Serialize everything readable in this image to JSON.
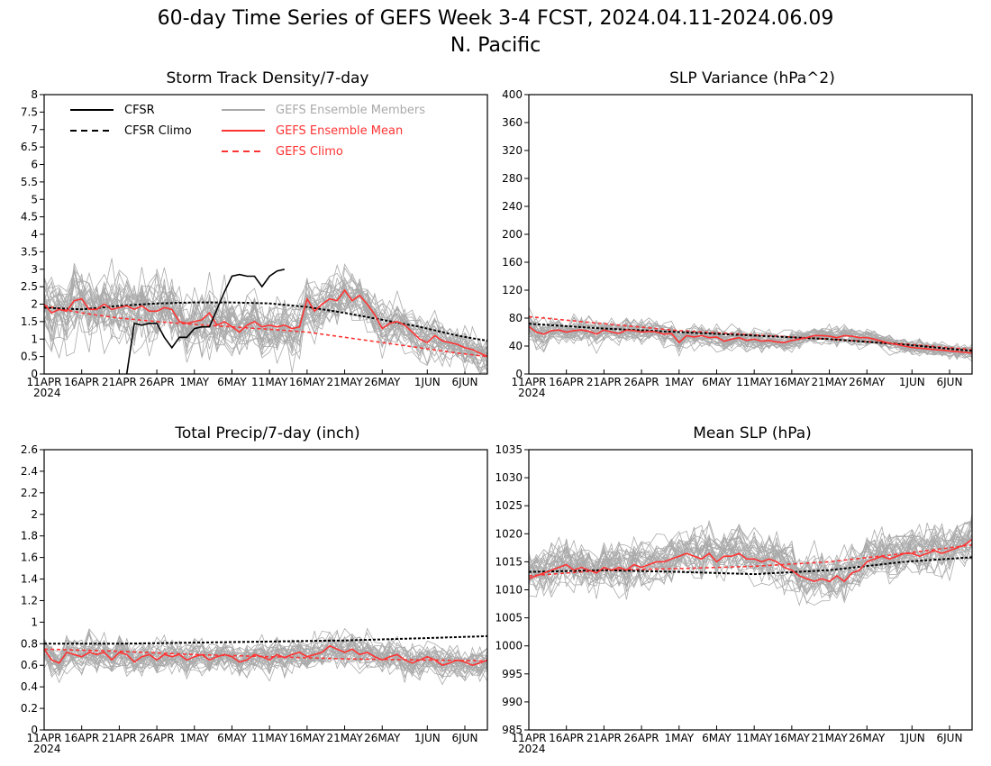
{
  "figure": {
    "title": "60-day Time Series of GEFS Week 3-4 FCST, 2024.04.11-2024.06.09",
    "subtitle": "N. Pacific"
  },
  "colors": {
    "cfsr": "#000000",
    "cfsr_climo": "#000000",
    "members": "#aaaaaa",
    "ens_mean": "#ff3333",
    "gefs_climo": "#ff3333"
  },
  "legend": {
    "cfsr": "CFSR",
    "cfsr_climo": "CFSR Climo",
    "members": "GEFS Ensemble Members",
    "ens_mean": "GEFS Ensemble Mean",
    "gefs_climo": "GEFS Climo"
  },
  "x_axis": {
    "ticks": [
      "11APR",
      "16APR",
      "21APR",
      "26APR",
      "1MAY",
      "6MAY",
      "11MAY",
      "16MAY",
      "21MAY",
      "26MAY",
      "1JUN",
      "6JUN"
    ],
    "tick_days": [
      0,
      5,
      10,
      15,
      20,
      25,
      30,
      35,
      40,
      45,
      51,
      56
    ],
    "year_label": "2024",
    "range_days": [
      0,
      59
    ]
  },
  "chart_data": [
    {
      "type": "line",
      "title": "Storm Track Density/7-day",
      "ylim": [
        0,
        8
      ],
      "yticks": [
        "0",
        "0.5",
        "1",
        "1.5",
        "2",
        "2.5",
        "3",
        "3.5",
        "4",
        "4.5",
        "5",
        "5.5",
        "6",
        "6.5",
        "7",
        "7.5",
        "8"
      ],
      "legend_position": "top-left",
      "member_count": 30,
      "series": [
        {
          "name": "CFSR",
          "x": [
            11,
            12,
            13,
            14,
            15,
            16,
            17,
            18,
            19,
            20,
            21,
            22,
            23,
            24,
            25,
            26,
            27,
            28,
            29,
            30,
            31,
            32
          ],
          "y": [
            0.0,
            1.45,
            1.4,
            1.45,
            1.45,
            1.05,
            0.75,
            1.05,
            1.05,
            1.3,
            1.35,
            1.35,
            1.85,
            2.35,
            2.8,
            2.85,
            2.8,
            2.8,
            2.5,
            2.8,
            2.95,
            3.0
          ]
        },
        {
          "name": "CFSR Climo",
          "x": [
            0,
            5,
            10,
            15,
            20,
            25,
            30,
            35,
            40,
            45,
            50,
            55,
            59
          ],
          "y": [
            1.9,
            1.85,
            1.95,
            2.02,
            2.05,
            2.05,
            2.02,
            1.92,
            1.75,
            1.55,
            1.35,
            1.1,
            0.95
          ]
        },
        {
          "name": "GEFS Ensemble Mean",
          "x": [
            0,
            1,
            2,
            3,
            4,
            5,
            6,
            7,
            8,
            9,
            10,
            11,
            12,
            13,
            14,
            15,
            16,
            17,
            18,
            19,
            20,
            21,
            22,
            23,
            24,
            25,
            26,
            27,
            28,
            29,
            30,
            31,
            32,
            33,
            34,
            35,
            36,
            37,
            38,
            39,
            40,
            41,
            42,
            43,
            44,
            45,
            46,
            47,
            48,
            49,
            50,
            51,
            52,
            53,
            54,
            55,
            56,
            57,
            58,
            59
          ],
          "y": [
            2.0,
            1.75,
            1.85,
            1.8,
            2.1,
            2.15,
            1.85,
            1.85,
            2.0,
            1.85,
            1.9,
            1.95,
            1.85,
            1.95,
            1.8,
            1.8,
            1.9,
            1.85,
            1.5,
            1.45,
            1.5,
            1.55,
            1.75,
            1.4,
            1.5,
            1.35,
            1.2,
            1.4,
            1.5,
            1.35,
            1.4,
            1.35,
            1.4,
            1.3,
            1.35,
            2.15,
            1.8,
            2.0,
            2.15,
            2.1,
            2.4,
            2.1,
            2.25,
            2.0,
            1.7,
            1.3,
            1.45,
            1.5,
            1.4,
            1.2,
            1.0,
            0.9,
            1.1,
            0.95,
            0.9,
            0.85,
            0.75,
            0.7,
            0.6,
            0.5
          ]
        },
        {
          "name": "GEFS Climo",
          "x": [
            0,
            5,
            10,
            15,
            20,
            25,
            30,
            35,
            40,
            45,
            50,
            55,
            59
          ],
          "y": [
            1.95,
            1.75,
            1.6,
            1.5,
            1.42,
            1.35,
            1.28,
            1.2,
            1.05,
            0.9,
            0.75,
            0.6,
            0.5
          ]
        }
      ]
    },
    {
      "type": "line",
      "title": "SLP Variance (hPa^2)",
      "ylim": [
        0,
        400
      ],
      "yticks": [
        "0",
        "40",
        "80",
        "120",
        "160",
        "200",
        "240",
        "280",
        "320",
        "360",
        "400"
      ],
      "member_count": 30,
      "series": [
        {
          "name": "CFSR Climo",
          "x": [
            0,
            10,
            20,
            30,
            40,
            50,
            59
          ],
          "y": [
            72,
            65,
            60,
            55,
            50,
            42,
            33
          ]
        },
        {
          "name": "GEFS Ensemble Mean",
          "x": [
            0,
            1,
            2,
            3,
            4,
            5,
            6,
            7,
            8,
            9,
            10,
            11,
            12,
            13,
            14,
            15,
            16,
            17,
            18,
            19,
            20,
            21,
            22,
            23,
            24,
            25,
            26,
            27,
            28,
            29,
            30,
            31,
            32,
            33,
            34,
            35,
            36,
            37,
            38,
            39,
            40,
            41,
            42,
            43,
            44,
            45,
            46,
            47,
            48,
            49,
            50,
            51,
            52,
            53,
            54,
            55,
            56,
            57,
            58,
            59
          ],
          "y": [
            68,
            60,
            57,
            62,
            63,
            60,
            62,
            63,
            61,
            57,
            63,
            60,
            58,
            63,
            62,
            60,
            61,
            60,
            57,
            58,
            45,
            55,
            53,
            55,
            52,
            53,
            47,
            50,
            52,
            48,
            50,
            47,
            48,
            46,
            45,
            48,
            50,
            52,
            55,
            55,
            54,
            52,
            55,
            54,
            52,
            52,
            50,
            47,
            44,
            42,
            40,
            38,
            37,
            36,
            35,
            34,
            33,
            32,
            31,
            30
          ]
        },
        {
          "name": "GEFS Climo",
          "x": [
            0,
            10,
            20,
            30,
            40,
            50,
            59
          ],
          "y": [
            82,
            72,
            62,
            56,
            50,
            43,
            35
          ]
        }
      ]
    },
    {
      "type": "line",
      "title": "Total Precip/7-day (inch)",
      "ylim": [
        0,
        2.6
      ],
      "yticks": [
        "0",
        "0.2",
        "0.4",
        "0.6",
        "0.8",
        "1",
        "1.2",
        "1.4",
        "1.6",
        "1.8",
        "2",
        "2.2",
        "2.4",
        "2.6"
      ],
      "member_count": 30,
      "series": [
        {
          "name": "CFSR Climo",
          "x": [
            0,
            10,
            20,
            30,
            40,
            50,
            59
          ],
          "y": [
            0.8,
            0.8,
            0.81,
            0.82,
            0.83,
            0.85,
            0.87
          ]
        },
        {
          "name": "GEFS Ensemble Mean",
          "x": [
            0,
            1,
            2,
            3,
            4,
            5,
            6,
            7,
            8,
            9,
            10,
            11,
            12,
            13,
            14,
            15,
            16,
            17,
            18,
            19,
            20,
            21,
            22,
            23,
            24,
            25,
            26,
            27,
            28,
            29,
            30,
            31,
            32,
            33,
            34,
            35,
            36,
            37,
            38,
            39,
            40,
            41,
            42,
            43,
            44,
            45,
            46,
            47,
            48,
            49,
            50,
            51,
            52,
            53,
            54,
            55,
            56,
            57,
            58,
            59
          ],
          "y": [
            0.75,
            0.65,
            0.62,
            0.72,
            0.7,
            0.68,
            0.72,
            0.7,
            0.72,
            0.65,
            0.72,
            0.7,
            0.63,
            0.68,
            0.7,
            0.65,
            0.7,
            0.68,
            0.7,
            0.65,
            0.68,
            0.7,
            0.65,
            0.68,
            0.7,
            0.68,
            0.63,
            0.65,
            0.7,
            0.68,
            0.65,
            0.7,
            0.67,
            0.7,
            0.72,
            0.68,
            0.7,
            0.72,
            0.78,
            0.75,
            0.72,
            0.75,
            0.7,
            0.72,
            0.68,
            0.65,
            0.68,
            0.7,
            0.65,
            0.62,
            0.65,
            0.68,
            0.65,
            0.6,
            0.62,
            0.65,
            0.63,
            0.6,
            0.62,
            0.65
          ]
        },
        {
          "name": "GEFS Climo",
          "x": [
            0,
            10,
            20,
            30,
            40,
            50,
            59
          ],
          "y": [
            0.75,
            0.73,
            0.7,
            0.68,
            0.66,
            0.65,
            0.64
          ]
        }
      ]
    },
    {
      "type": "line",
      "title": "Mean SLP (hPa)",
      "ylim": [
        985,
        1035
      ],
      "yticks": [
        "985",
        "990",
        "995",
        "1000",
        "1005",
        "1010",
        "1015",
        "1020",
        "1025",
        "1030",
        "1035"
      ],
      "member_count": 30,
      "series": [
        {
          "name": "CFSR Climo",
          "x": [
            0,
            10,
            20,
            30,
            40,
            50,
            59
          ],
          "y": [
            1013.2,
            1013.5,
            1013.2,
            1012.8,
            1013.5,
            1015.0,
            1015.8
          ]
        },
        {
          "name": "GEFS Ensemble Mean",
          "x": [
            0,
            1,
            2,
            3,
            4,
            5,
            6,
            7,
            8,
            9,
            10,
            11,
            12,
            13,
            14,
            15,
            16,
            17,
            18,
            19,
            20,
            21,
            22,
            23,
            24,
            25,
            26,
            27,
            28,
            29,
            30,
            31,
            32,
            33,
            34,
            35,
            36,
            37,
            38,
            39,
            40,
            41,
            42,
            43,
            44,
            45,
            46,
            47,
            48,
            49,
            50,
            51,
            52,
            53,
            54,
            55,
            56,
            57,
            58,
            59
          ],
          "y": [
            1012.0,
            1012.5,
            1013.0,
            1013.5,
            1014.0,
            1014.5,
            1013.5,
            1014.0,
            1013.5,
            1013.0,
            1014.0,
            1013.5,
            1014.0,
            1013.5,
            1014.5,
            1014.0,
            1014.5,
            1015.0,
            1015.0,
            1015.5,
            1016.0,
            1016.5,
            1016.0,
            1015.5,
            1016.5,
            1015.0,
            1016.0,
            1016.0,
            1016.5,
            1015.5,
            1015.5,
            1015.0,
            1015.5,
            1015.0,
            1014.0,
            1013.5,
            1012.5,
            1012.0,
            1011.5,
            1012.0,
            1011.5,
            1012.5,
            1011.5,
            1013.0,
            1013.5,
            1015.0,
            1015.5,
            1016.0,
            1015.5,
            1016.0,
            1016.5,
            1016.5,
            1016.0,
            1016.5,
            1017.0,
            1016.5,
            1017.0,
            1017.5,
            1018.0,
            1019.0
          ]
        },
        {
          "name": "GEFS Climo",
          "x": [
            0,
            10,
            20,
            30,
            40,
            50,
            59
          ],
          "y": [
            1012.5,
            1013.5,
            1013.8,
            1014.2,
            1015.0,
            1016.5,
            1018.0
          ]
        }
      ]
    }
  ]
}
